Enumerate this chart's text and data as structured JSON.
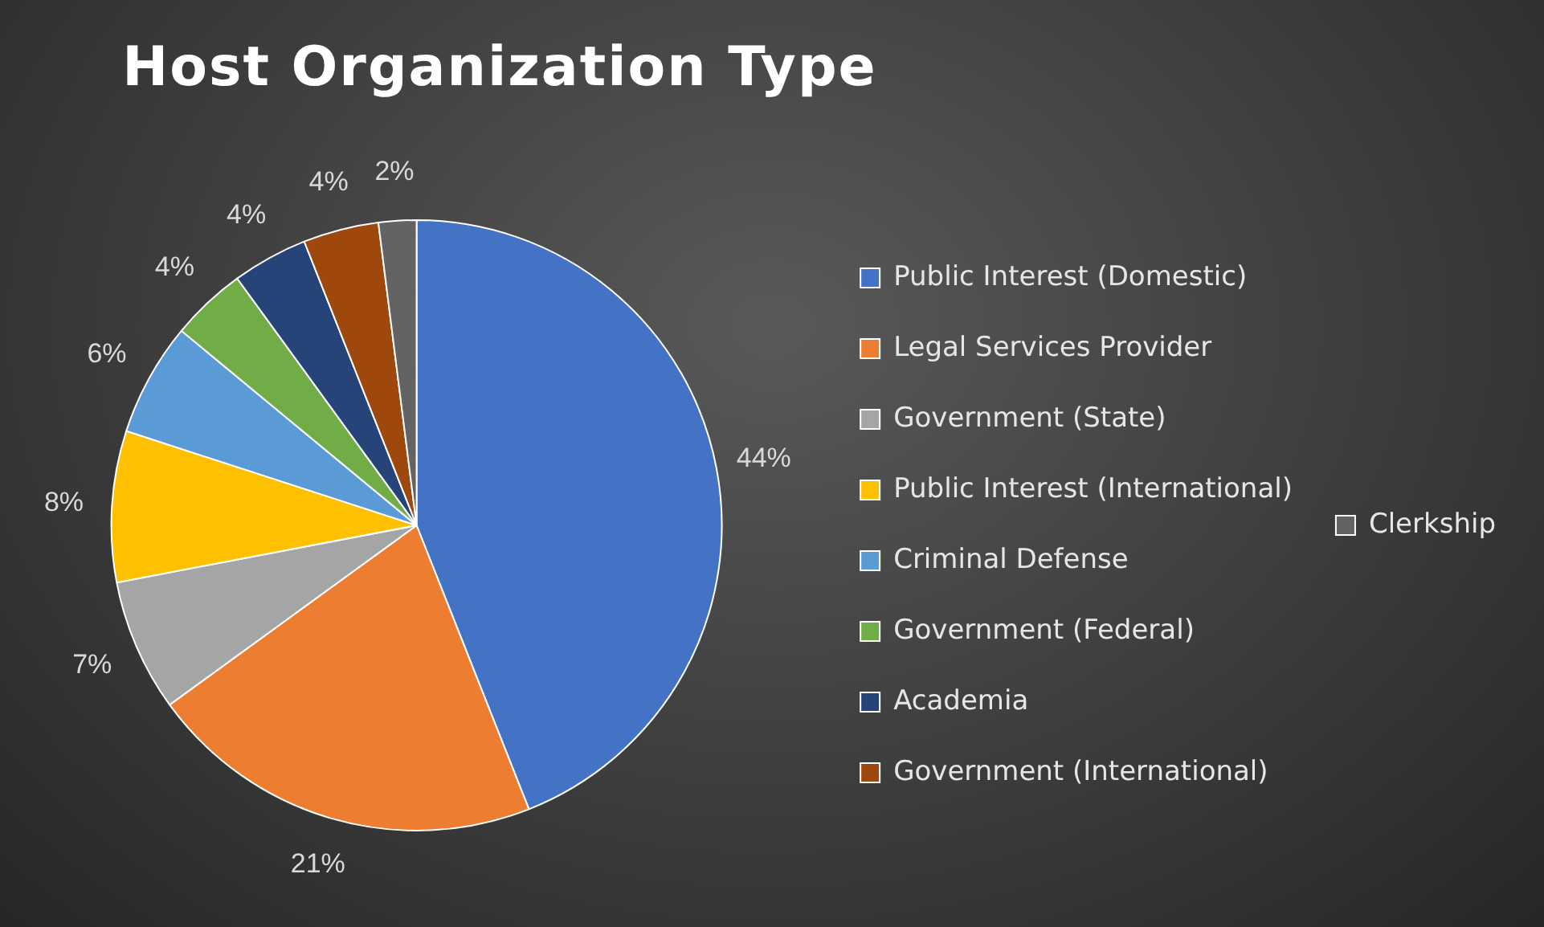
{
  "chart_data": {
    "type": "pie",
    "title": "Host Organization Type",
    "categories": [
      "Public Interest (Domestic)",
      "Legal Services Provider",
      "Government (State)",
      "Public Interest (International)",
      "Criminal Defense",
      "Government (Federal)",
      "Academia",
      "Government (International)",
      "Clerkship"
    ],
    "values": [
      44,
      21,
      7,
      8,
      6,
      4,
      4,
      4,
      2
    ],
    "colors": [
      "#4472c4",
      "#ed7d31",
      "#a5a5a5",
      "#ffc000",
      "#5b9bd5",
      "#70ad47",
      "#264478",
      "#9e480e",
      "#636363"
    ],
    "value_labels": [
      "44%",
      "21%",
      "7%",
      "8%",
      "6%",
      "4%",
      "4%",
      "4%",
      "2%"
    ],
    "legend": "right"
  }
}
